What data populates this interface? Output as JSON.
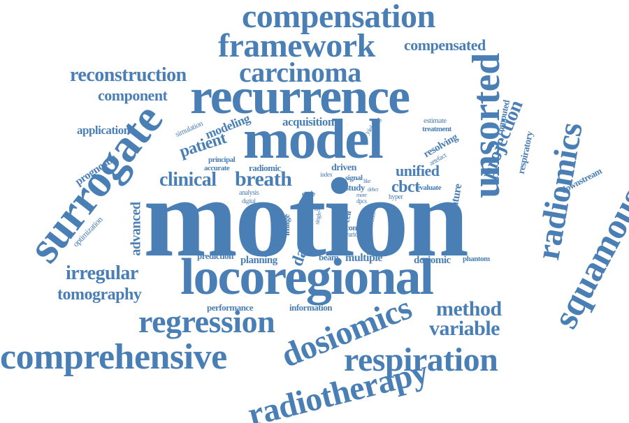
{
  "accent_color": "#4a7fb5",
  "words": [
    "motion",
    "locoregional",
    "recurrence",
    "model",
    "surrogate",
    "compensation",
    "framework",
    "carcinoma",
    "reconstruction",
    "component",
    "compensated",
    "unsorted",
    "radiomics",
    "squamous",
    "projection",
    "respiratory",
    "computed",
    "downstream",
    "application",
    "prognostic",
    "simulation",
    "modeling",
    "patient",
    "acquisition",
    "estimate",
    "treatment",
    "resolving",
    "artefact",
    "principal",
    "accurate",
    "radiomic",
    "clinical",
    "breath",
    "driven",
    "unified",
    "index",
    "signal",
    "study",
    "cbct",
    "evaluate",
    "feature",
    "yielding",
    "analysis",
    "digital",
    "cycle",
    "hyper",
    "dpcs",
    "cell",
    "single",
    "time",
    "image",
    "available",
    "cone",
    "various",
    "optimization",
    "advanced",
    "irregular",
    "tomography",
    "prediction",
    "planning",
    "data",
    "beam",
    "multiple",
    "dosiomic",
    "phantom",
    "performance",
    "information",
    "regression",
    "dosiomics",
    "method",
    "variable",
    "comprehensive",
    "respiration",
    "radiotherapy",
    "more",
    "debct",
    "like",
    "ray"
  ]
}
